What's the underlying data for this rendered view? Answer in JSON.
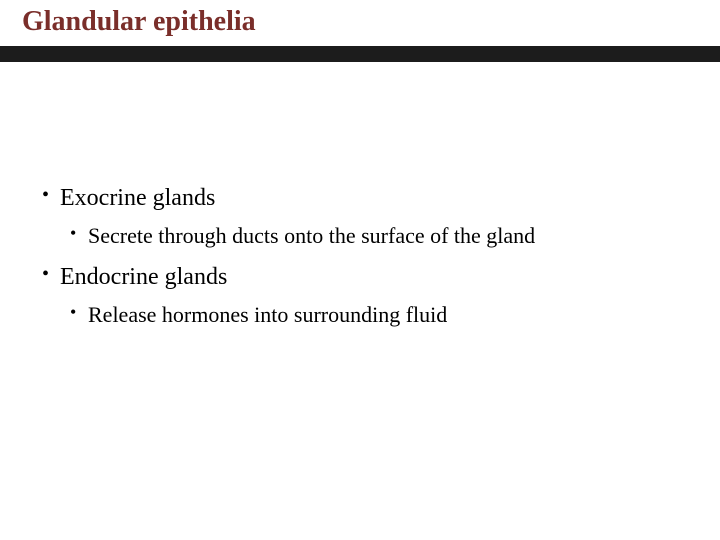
{
  "slide": {
    "title": "Glandular epithelia",
    "title_color": "#7a2e2a",
    "title_fontsize": 28,
    "title_fontweight": "bold",
    "divider_color": "#1c1c1c",
    "divider_height": 16,
    "background_color": "#ffffff",
    "body_fontsize_l1": 24,
    "body_fontsize_l2": 22,
    "body_color": "#000000",
    "bullets": [
      {
        "text": "Exocrine glands",
        "children": [
          {
            "text": "Secrete through ducts onto the surface of the gland"
          }
        ]
      },
      {
        "text": "Endocrine glands",
        "children": [
          {
            "text": "Release hormones into surrounding fluid"
          }
        ]
      }
    ]
  }
}
